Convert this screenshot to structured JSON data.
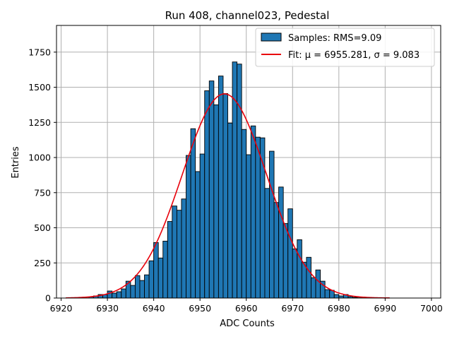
{
  "chart_data": {
    "type": "bar",
    "title": "Run 408, channel023, Pedestal",
    "xlabel": "ADC Counts",
    "ylabel": "Entries",
    "xlim": [
      6919,
      7002
    ],
    "ylim": [
      0,
      1940
    ],
    "xticks": [
      6920,
      6930,
      6940,
      6950,
      6960,
      6970,
      6980,
      6990,
      7000
    ],
    "yticks": [
      0,
      250,
      500,
      750,
      1000,
      1250,
      1500,
      1750
    ],
    "grid": true,
    "legend_position": "top-right",
    "colors": {
      "bars": "#1f77b4",
      "bar_edge": "#000000",
      "fit": "#e8000b",
      "grid": "#b0b0b0"
    },
    "series": [
      {
        "name": "Samples: RMS=9.09",
        "kind": "histogram",
        "bin_width": 1,
        "bin_starts": [
          6926,
          6927,
          6928,
          6929,
          6930,
          6931,
          6932,
          6933,
          6934,
          6935,
          6936,
          6937,
          6938,
          6939,
          6940,
          6941,
          6942,
          6943,
          6944,
          6945,
          6946,
          6947,
          6948,
          6949,
          6950,
          6951,
          6952,
          6953,
          6954,
          6955,
          6956,
          6957,
          6958,
          6959,
          6960,
          6961,
          6962,
          6963,
          6964,
          6965,
          6966,
          6967,
          6968,
          6969,
          6970,
          6971,
          6972,
          6973,
          6974,
          6975,
          6976,
          6977,
          6978,
          6979,
          6980,
          6981,
          6982,
          6983,
          6984
        ],
        "values": [
          8,
          15,
          25,
          25,
          50,
          35,
          45,
          65,
          120,
          90,
          160,
          125,
          165,
          265,
          395,
          285,
          405,
          545,
          655,
          625,
          705,
          1015,
          1205,
          900,
          1025,
          1475,
          1545,
          1375,
          1580,
          1455,
          1245,
          1680,
          1665,
          1200,
          1020,
          1225,
          1145,
          1140,
          780,
          1045,
          680,
          790,
          530,
          635,
          350,
          415,
          255,
          290,
          145,
          200,
          120,
          60,
          55,
          25,
          15,
          25,
          10,
          5,
          2
        ]
      },
      {
        "name": "Fit: μ = 6955.281, σ = 9.083",
        "kind": "gaussian",
        "mu": 6955.281,
        "sigma": 9.083,
        "amplitude": 1453,
        "x_range": [
          6921,
          6991
        ]
      }
    ]
  }
}
